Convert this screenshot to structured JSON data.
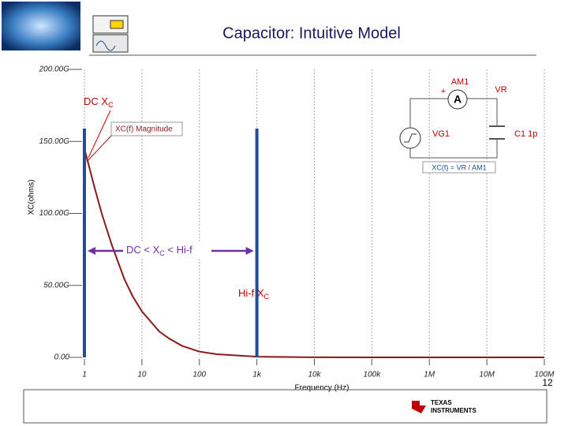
{
  "chart_data": {
    "type": "line",
    "title": "Capacitor: Intuitive Model",
    "x_label": "Frequency (Hz)",
    "y_label": "XC(ohms)",
    "xscale": "log",
    "grid": true,
    "xlim": [
      1,
      100000000
    ],
    "xticks": [
      1,
      10,
      100,
      {
        "value": 1000,
        "label": "1k"
      },
      {
        "value": 10000,
        "label": "10k"
      },
      {
        "value": 100000,
        "label": "100k"
      },
      {
        "value": 1000000,
        "label": "1M"
      },
      {
        "value": 10000000,
        "label": "10M"
      },
      {
        "value": 100000000,
        "label": "100M"
      }
    ],
    "ylim": [
      0,
      200
    ],
    "yticks": [
      {
        "value": 0,
        "label": "0.00"
      },
      {
        "value": 50,
        "label": "50.00G"
      },
      {
        "value": 100,
        "label": "100.00G"
      },
      {
        "value": 150,
        "label": "150.00G"
      },
      {
        "value": 200,
        "label": "200.00G"
      }
    ],
    "x": [
      1,
      1.5,
      2,
      3,
      5,
      7,
      10,
      20,
      30,
      50,
      100,
      200,
      1000,
      10000,
      100000,
      1000000,
      10000000,
      100000000
    ],
    "series": [
      {
        "name": "XC(f) Magnitude",
        "color": "#8b1a1a",
        "values": [
          145,
          118,
          100,
          78,
          54,
          42,
          32,
          18,
          13,
          8,
          4,
          2.2,
          0.5,
          0.05,
          0,
          0,
          0,
          0
        ]
      }
    ],
    "markers": [
      {
        "x": 1,
        "color": "#1f4e9a"
      },
      {
        "x": 1000,
        "color": "#1f4e9a"
      }
    ],
    "annotations": [
      {
        "parts": [
          "DC X",
          "C"
        ],
        "color": "#c00000"
      },
      {
        "parts": [
          "DC < X",
          "C",
          " < Hi-f"
        ],
        "color": "#7030a0"
      },
      {
        "parts": [
          "Hi-f X",
          "C"
        ],
        "color": "#c00000"
      }
    ]
  },
  "circuit": {
    "ammeter": "AM1",
    "ammeter_symbol": "A",
    "plus": "+",
    "voltmeter": "VR",
    "source": "VG1",
    "capacitor": "C1 1p",
    "formula": "XC(f) = VR / AM1"
  },
  "slide": {
    "page_number": "12",
    "logo": [
      "TEXAS",
      "INSTRUMENTS"
    ]
  }
}
